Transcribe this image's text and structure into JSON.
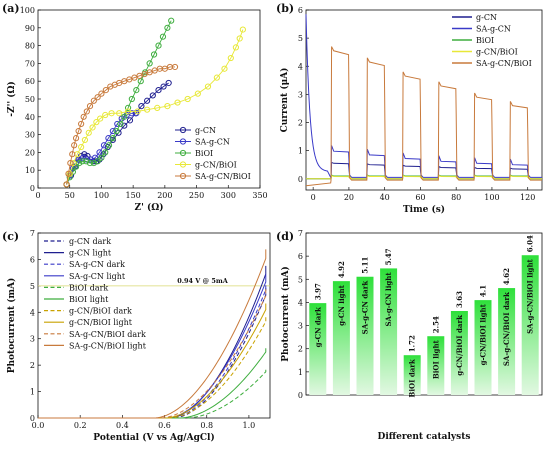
{
  "colors": {
    "gcn": "#1f1f8f",
    "sagcn": "#3a3ac8",
    "bioi": "#3fae3f",
    "gcnbioi": "#e8e838",
    "gcnbioi_d": "#c9a200",
    "sagcnbioi": "#c87a3c",
    "bar_top": "#2ee03a",
    "bar_bottom": "#e2f8e2"
  },
  "chart_data": [
    {
      "panel": "(a)",
      "type": "scatter",
      "xlabel": "Z' (Ω)",
      "ylabel": "-Z'' (Ω)",
      "xlim": [
        0,
        350
      ],
      "ylim": [
        0,
        100
      ],
      "xticks": [
        0,
        50,
        100,
        150,
        200,
        250,
        300,
        350
      ],
      "yticks": [
        0,
        10,
        20,
        30,
        40,
        50,
        60,
        70,
        80,
        90,
        100
      ],
      "legend": "bottom-right",
      "series": [
        {
          "name": "g-CN",
          "key": "gcn",
          "x": [
            45,
            52,
            58,
            63,
            68,
            73,
            78,
            83,
            88,
            92,
            97,
            103,
            110,
            118,
            127,
            136,
            145,
            154,
            163,
            172,
            181,
            190,
            198,
            206
          ],
          "y": [
            2,
            7,
            12,
            16,
            18,
            19,
            18,
            16,
            15,
            15,
            16,
            19,
            23,
            27,
            31,
            35,
            38,
            42,
            46,
            49,
            52,
            55,
            57,
            59
          ]
        },
        {
          "name": "SA-g-CN",
          "key": "sagcn",
          "x": [
            45,
            50,
            55,
            60,
            65,
            71,
            77,
            83,
            90,
            97,
            104,
            111,
            118,
            125,
            132,
            140,
            148,
            155
          ],
          "y": [
            2,
            7,
            11,
            14,
            16,
            17,
            16,
            16,
            17,
            20,
            24,
            28,
            32,
            36,
            39,
            41,
            42,
            42
          ]
        },
        {
          "name": "BiOI",
          "key": "bioi",
          "x": [
            45,
            50,
            55,
            60,
            65,
            70,
            76,
            82,
            88,
            94,
            100,
            106,
            112,
            118,
            124,
            130,
            136,
            142,
            148,
            155,
            162,
            169,
            176,
            183,
            190,
            197,
            204,
            210
          ],
          "y": [
            2,
            6,
            9,
            12,
            14,
            15,
            15,
            14,
            14,
            15,
            17,
            20,
            24,
            28,
            32,
            36,
            40,
            45,
            50,
            55,
            60,
            65,
            70,
            75,
            80,
            85,
            90,
            94
          ]
        },
        {
          "name": "g-CN/BiOI",
          "key": "gcnbioi",
          "x": [
            45,
            50,
            56,
            62,
            68,
            74,
            80,
            86,
            92,
            98,
            106,
            116,
            128,
            142,
            157,
            172,
            188,
            204,
            220,
            236,
            252,
            268,
            282,
            294,
            304,
            312,
            318,
            323
          ],
          "y": [
            2,
            8,
            14,
            19,
            23,
            27,
            31,
            34,
            37,
            39,
            41,
            42,
            42,
            43,
            43,
            44,
            45,
            46,
            48,
            50,
            53,
            57,
            62,
            67,
            73,
            79,
            84,
            89
          ]
        },
        {
          "name": "SA-g-CN/BiOI",
          "key": "sagcnbioi",
          "x": [
            45,
            48,
            51,
            54,
            57,
            60,
            64,
            68,
            72,
            77,
            82,
            88,
            94,
            100,
            107,
            114,
            121,
            128,
            136,
            144,
            152,
            160,
            168,
            176,
            184,
            192,
            200,
            208,
            216
          ],
          "y": [
            2,
            8,
            14,
            19,
            24,
            28,
            32,
            36,
            40,
            43,
            46,
            49,
            51,
            53,
            55,
            57,
            58,
            59,
            60,
            61,
            62,
            63,
            64,
            65,
            66,
            67,
            67,
            68,
            68
          ]
        }
      ]
    },
    {
      "panel": "(b)",
      "type": "line",
      "xlabel": "Time (s)",
      "ylabel": "Current (μA)",
      "xlim": [
        -4,
        128
      ],
      "ylim": [
        -0.4,
        6
      ],
      "xticks": [
        0,
        20,
        40,
        60,
        80,
        100,
        120
      ],
      "yticks": [
        0,
        1,
        2,
        3,
        4,
        5,
        6
      ],
      "legend": "top-right",
      "cycles": [
        {
          "on": 10,
          "off": 20
        },
        {
          "on": 30,
          "off": 40
        },
        {
          "on": 50,
          "off": 60
        },
        {
          "on": 70,
          "off": 80
        },
        {
          "on": 90,
          "off": 100
        },
        {
          "on": 110,
          "off": 120
        }
      ],
      "series": [
        {
          "name": "g-CN",
          "key": "gcn",
          "on_levels": [
            0.55,
            0.5,
            0.45,
            0.4,
            0.37,
            0.35
          ],
          "dark": 0.0
        },
        {
          "name": "SA-g-CN",
          "key": "sagcn",
          "on_levels": [
            0.98,
            0.85,
            0.72,
            0.62,
            0.55,
            0.5
          ],
          "dark": 0.05
        },
        {
          "name": "BiOI",
          "key": "bioi",
          "on_levels": [
            0.1,
            0.1,
            0.1,
            0.1,
            0.1,
            0.1
          ],
          "dark": 0.0
        },
        {
          "name": "g-CN/BiOI",
          "key": "gcnbioi",
          "on_levels": [
            0.08,
            0.08,
            0.08,
            0.08,
            0.08,
            0.08
          ],
          "dark": 0.0
        },
        {
          "name": "SA-g-CN/BiOI",
          "key": "sagcnbioi",
          "on_levels": [
            4.55,
            4.15,
            3.65,
            3.3,
            2.9,
            2.6
          ],
          "dark": -0.05
        }
      ]
    },
    {
      "panel": "(c)",
      "type": "line",
      "xlabel": "Potential (V vs Ag/AgCl)",
      "ylabel": "Photocurrent (mA)",
      "xlim": [
        0,
        1.1
      ],
      "ylim": [
        0,
        7
      ],
      "xticks": [
        0.0,
        0.2,
        0.4,
        0.6,
        0.8,
        1.0
      ],
      "yticks": [
        0,
        1,
        2,
        3,
        4,
        5,
        6,
        7
      ],
      "reference_y": 5,
      "annotation": "0.94 V @ 5mA",
      "legend": "top-left",
      "series": [
        {
          "name": "g-CN dark",
          "key": "gcn",
          "dashed": true,
          "onset": 0.64,
          "end": 4.65
        },
        {
          "name": "g-CN light",
          "key": "gcn",
          "dashed": false,
          "onset": 0.62,
          "end": 5.45
        },
        {
          "name": "SA-g-CN dark",
          "key": "sagcn",
          "dashed": true,
          "onset": 0.63,
          "end": 4.85
        },
        {
          "name": "SA-g-CN light",
          "key": "sagcn",
          "dashed": false,
          "onset": 0.61,
          "end": 5.15
        },
        {
          "name": "BiOI dark",
          "key": "bioi",
          "dashed": true,
          "onset": 0.7,
          "end": 1.75
        },
        {
          "name": "BiOI light",
          "key": "bioi",
          "dashed": false,
          "onset": 0.67,
          "end": 2.5
        },
        {
          "name": "g-CN/BiOI dark",
          "key": "gcnbioi_d",
          "dashed": true,
          "onset": 0.62,
          "end": 3.65
        },
        {
          "name": "g-CN/BiOI light",
          "key": "gcnbioi_d",
          "dashed": false,
          "onset": 0.6,
          "end": 4.1
        },
        {
          "name": "SA-g-CN/BiOI dark",
          "key": "sagcnbioi",
          "dashed": true,
          "onset": 0.58,
          "end": 4.62
        },
        {
          "name": "SA-g-CN/BiOI light",
          "key": "sagcnbioi",
          "dashed": false,
          "onset": 0.55,
          "end": 6.04
        }
      ]
    },
    {
      "panel": "(d)",
      "type": "bar",
      "xlabel": "Different catalysts",
      "ylabel": "Photocurrent (mA)",
      "ylim": [
        0,
        7
      ],
      "yticks": [
        0,
        1,
        2,
        3,
        4,
        5,
        6,
        7
      ],
      "categories": [
        "g-CN dark",
        "g-CN light",
        "SA-g-CN dark",
        "SA-g-CN light",
        "BiOI dark",
        "BiOI light",
        "g-CN/BiOI dark",
        "g-CN/BiOI light",
        "SA-g-CN/BiOI dark",
        "SA-g-CN/BiOI light"
      ],
      "values": [
        3.97,
        4.92,
        5.11,
        5.47,
        1.72,
        2.54,
        3.63,
        4.1,
        4.62,
        6.04
      ],
      "labels": [
        "3.97",
        "4.92",
        "5.11",
        "5.47",
        "1.72",
        "2.54",
        "3.63",
        "4.1",
        "4.62",
        "6.04"
      ]
    }
  ]
}
